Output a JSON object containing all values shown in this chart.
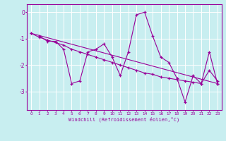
{
  "title": "",
  "xlabel": "Windchill (Refroidissement éolien,°C)",
  "bg_color": "#c8eef0",
  "line_color": "#990099",
  "grid_color": "#ffffff",
  "xlim": [
    -0.5,
    23.5
  ],
  "ylim": [
    -3.7,
    0.3
  ],
  "xticks": [
    0,
    1,
    2,
    3,
    4,
    5,
    6,
    7,
    8,
    9,
    10,
    11,
    12,
    13,
    14,
    15,
    16,
    17,
    18,
    19,
    20,
    21,
    22,
    23
  ],
  "yticks": [
    0,
    -1,
    -2,
    -3
  ],
  "line1_x": [
    1,
    2,
    3,
    4,
    5,
    6,
    7,
    8,
    9,
    10,
    11,
    12,
    13,
    14,
    15,
    16,
    17,
    18,
    19,
    20,
    21,
    22,
    23
  ],
  "line1_y": [
    -0.9,
    -1.1,
    -1.1,
    -1.4,
    -2.7,
    -2.6,
    -1.5,
    -1.4,
    -1.2,
    -1.7,
    -2.4,
    -1.5,
    -0.1,
    0.0,
    -0.9,
    -1.7,
    -1.9,
    -2.5,
    -3.4,
    -2.4,
    -2.7,
    -1.5,
    -2.7
  ],
  "line2_x": [
    0,
    1,
    2,
    3,
    4,
    5,
    6,
    7,
    8,
    9,
    10,
    11,
    12,
    13,
    14,
    15,
    16,
    17,
    18,
    19,
    20,
    21,
    22,
    23
  ],
  "line2_y": [
    -0.8,
    -0.95,
    -1.05,
    -1.15,
    -1.25,
    -1.4,
    -1.5,
    -1.6,
    -1.7,
    -1.8,
    -1.9,
    -2.0,
    -2.1,
    -2.2,
    -2.3,
    -2.35,
    -2.45,
    -2.5,
    -2.55,
    -2.6,
    -2.65,
    -2.7,
    -2.2,
    -2.6
  ],
  "line3_x": [
    0,
    23
  ],
  "line3_y": [
    -0.8,
    -2.7
  ]
}
